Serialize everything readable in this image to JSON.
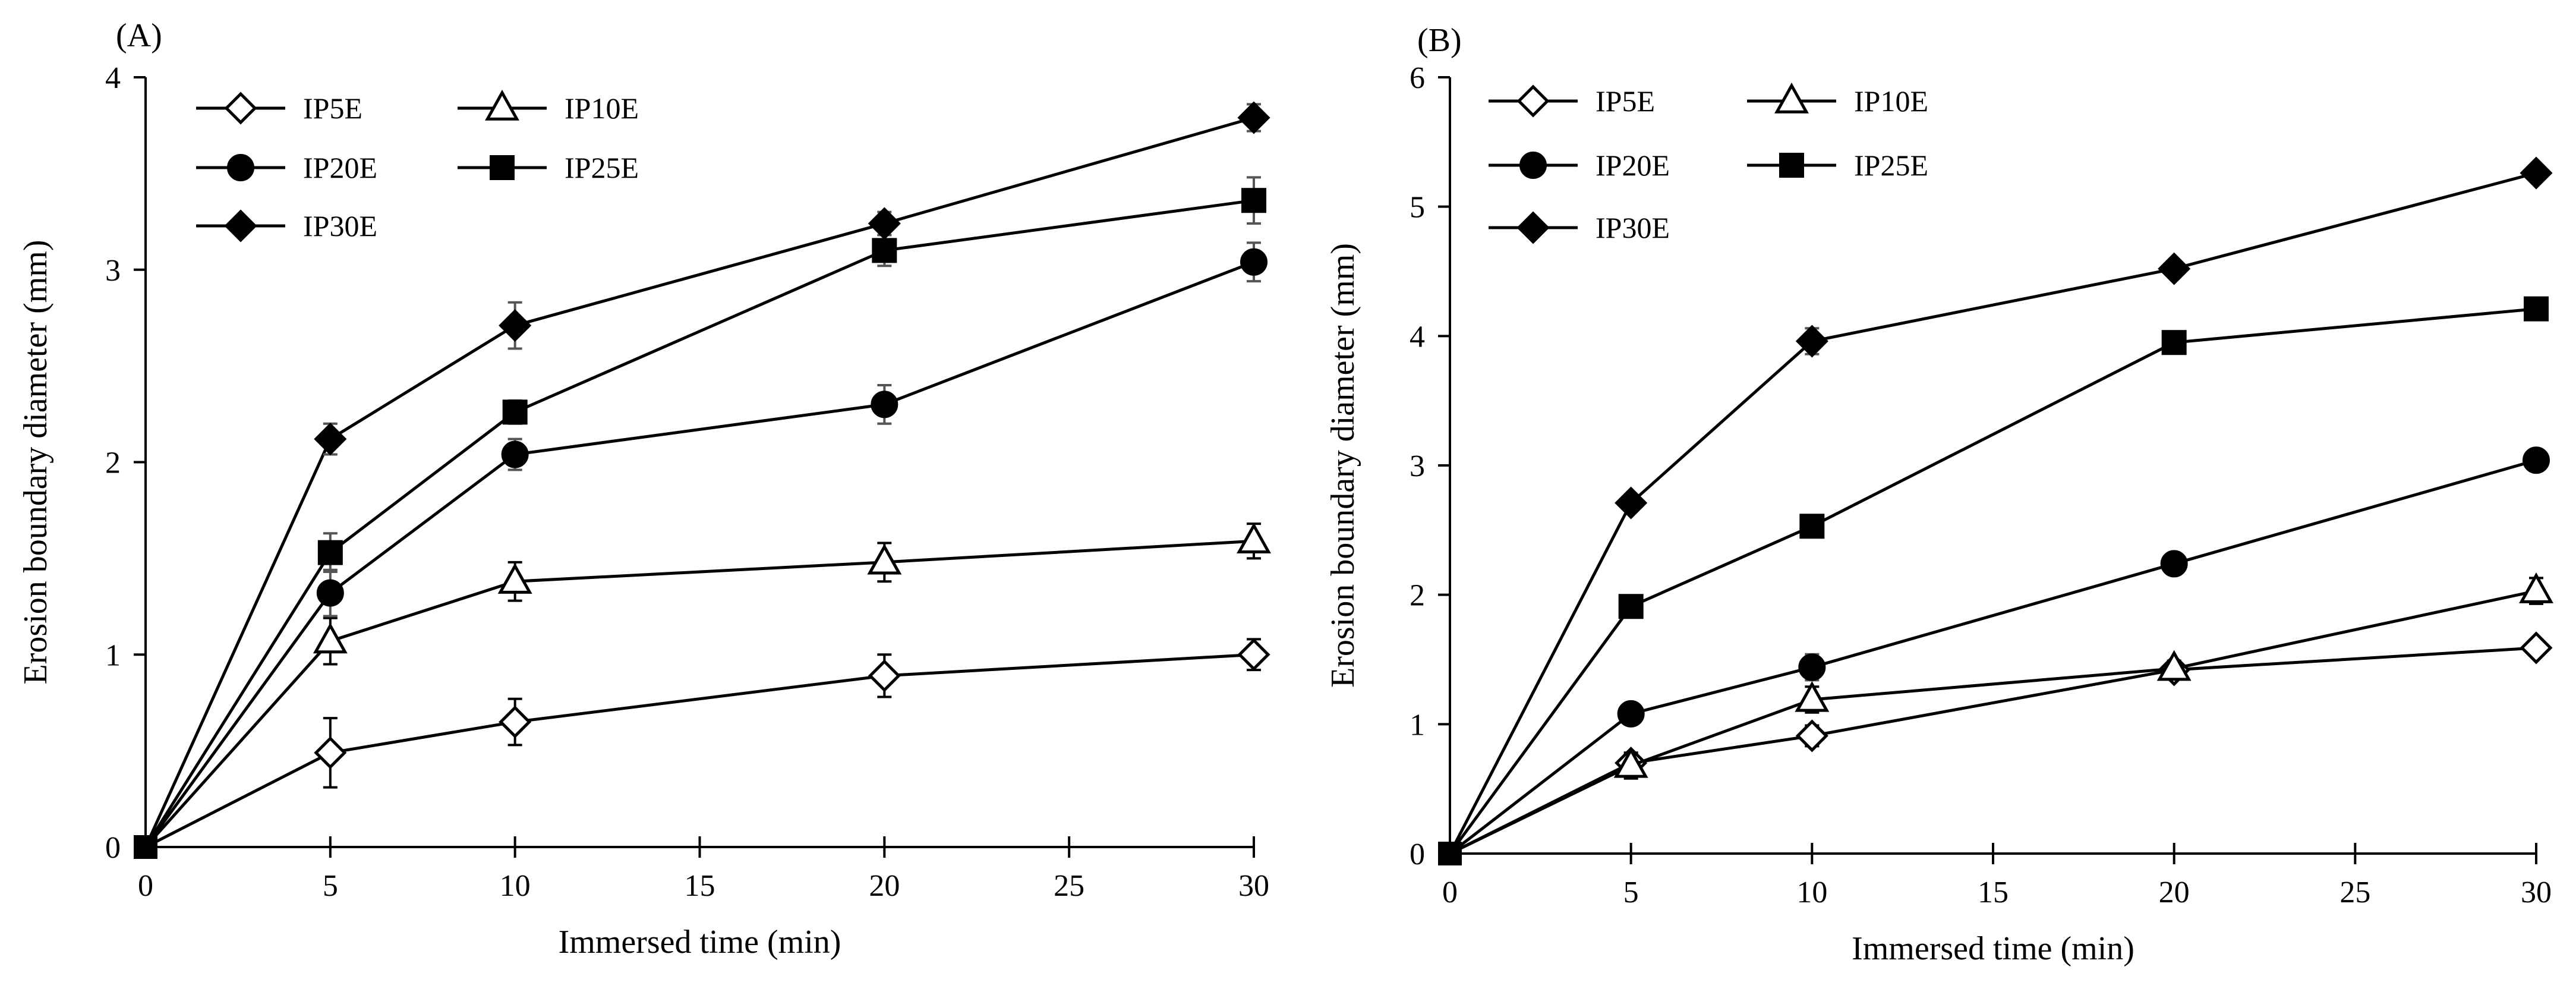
{
  "chart_data": [
    {
      "type": "line",
      "panel_label": "(A)",
      "title": "",
      "xlabel": "Immersed time (min)",
      "ylabel": "Erosion boundary diameter (mm)",
      "xlim": [
        0,
        30
      ],
      "ylim": [
        0,
        4
      ],
      "x_ticks": [
        0,
        5,
        10,
        15,
        20,
        25,
        30
      ],
      "y_ticks": [
        0,
        1,
        2,
        3,
        4
      ],
      "grid": false,
      "legend_position": "top-left",
      "x": [
        0,
        5,
        10,
        20,
        30
      ],
      "series": [
        {
          "name": "IP5E",
          "marker": "diamond-open",
          "values": [
            0,
            0.49,
            0.65,
            0.89,
            1.0
          ],
          "errors": [
            0,
            0.18,
            0.12,
            0.11,
            0.08
          ]
        },
        {
          "name": "IP10E",
          "marker": "triangle-open",
          "values": [
            0,
            1.07,
            1.38,
            1.48,
            1.59
          ],
          "errors": [
            0,
            0.12,
            0.1,
            0.1,
            0.09
          ]
        },
        {
          "name": "IP20E",
          "marker": "circle-filled",
          "values": [
            0,
            1.32,
            2.04,
            2.3,
            3.04
          ],
          "errors": [
            0,
            0.12,
            0.08,
            0.1,
            0.1
          ]
        },
        {
          "name": "IP25E",
          "marker": "square-filled",
          "values": [
            0,
            1.53,
            2.26,
            3.1,
            3.36
          ],
          "errors": [
            0,
            0.1,
            0.06,
            0.08,
            0.12
          ]
        },
        {
          "name": "IP30E",
          "marker": "diamond-filled",
          "values": [
            0,
            2.12,
            2.71,
            3.24,
            3.79
          ],
          "errors": [
            0,
            0.08,
            0.12,
            0.06,
            0.07
          ]
        }
      ]
    },
    {
      "type": "line",
      "panel_label": "(B)",
      "title": "",
      "xlabel": "Immersed time (min)",
      "ylabel": "Erosion boundary diameter (mm)",
      "xlim": [
        0,
        30
      ],
      "ylim": [
        0,
        6
      ],
      "x_ticks": [
        0,
        5,
        10,
        15,
        20,
        25,
        30
      ],
      "y_ticks": [
        0,
        1,
        2,
        3,
        4,
        5,
        6
      ],
      "grid": false,
      "legend_position": "top-left",
      "x": [
        0,
        5,
        10,
        20,
        30
      ],
      "series": [
        {
          "name": "IP5E",
          "marker": "diamond-open",
          "values": [
            0,
            0.7,
            0.91,
            1.42,
            1.59
          ],
          "errors": [
            0,
            0.06,
            0.08,
            0.04,
            0.05
          ]
        },
        {
          "name": "IP10E",
          "marker": "triangle-open",
          "values": [
            0,
            0.68,
            1.19,
            1.43,
            2.03
          ],
          "errors": [
            0,
            0.1,
            0.1,
            0.06,
            0.1
          ]
        },
        {
          "name": "IP20E",
          "marker": "circle-filled",
          "values": [
            0,
            1.08,
            1.44,
            2.24,
            3.04
          ],
          "errors": [
            0,
            0.05,
            0.1,
            0.04,
            0.04
          ]
        },
        {
          "name": "IP25E",
          "marker": "square-filled",
          "values": [
            0,
            1.91,
            2.53,
            3.95,
            4.21
          ],
          "errors": [
            0,
            0.05,
            0.05,
            0.05,
            0.05
          ]
        },
        {
          "name": "IP30E",
          "marker": "diamond-filled",
          "values": [
            0,
            2.71,
            3.96,
            4.52,
            5.26
          ],
          "errors": [
            0,
            0.04,
            0.1,
            0.04,
            0.04
          ]
        }
      ]
    }
  ]
}
